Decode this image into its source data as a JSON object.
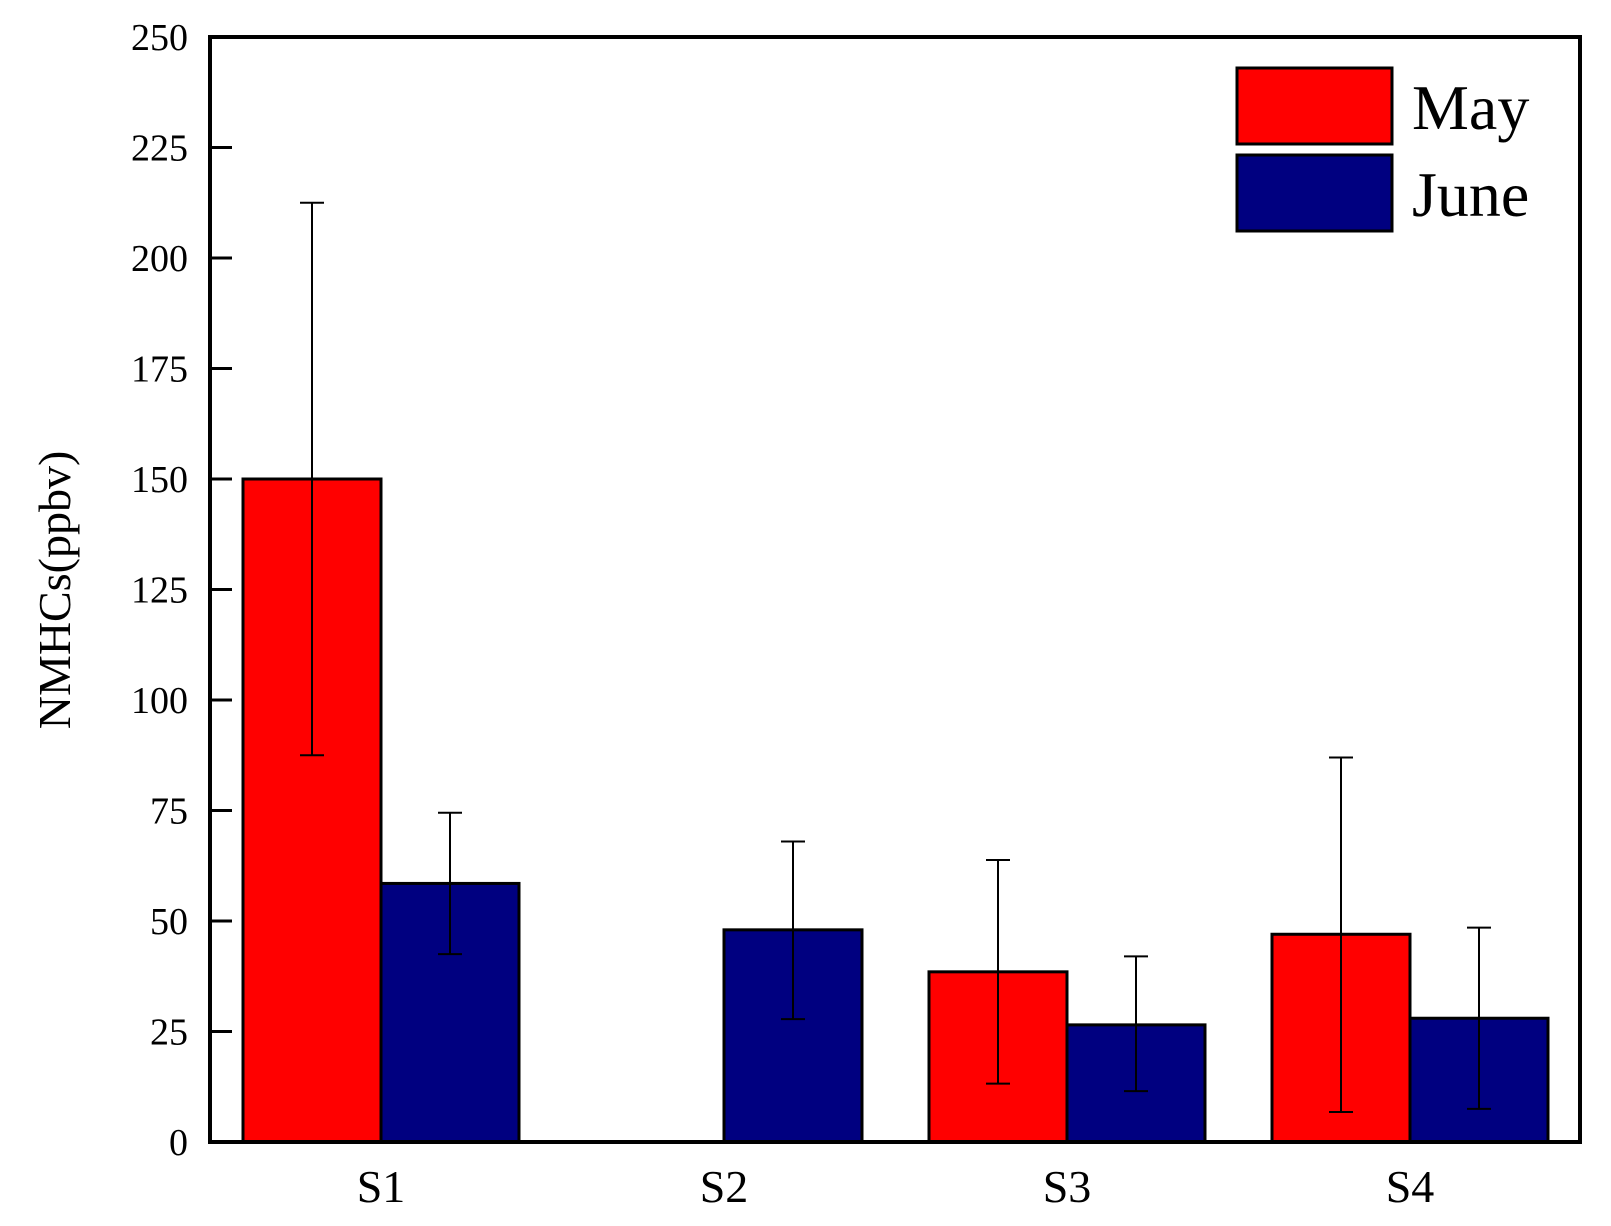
{
  "chart_data": {
    "type": "bar",
    "title": "",
    "xlabel": "",
    "ylabel": "NMHCs(ppbv)",
    "ylim": [
      0,
      250
    ],
    "yticks": [
      0,
      25,
      50,
      75,
      100,
      125,
      150,
      175,
      200,
      225,
      250
    ],
    "categories": [
      "S1",
      "S2",
      "S3",
      "S4"
    ],
    "series": [
      {
        "name": "May",
        "color": "#ff0000",
        "values": [
          150,
          null,
          38.5,
          47
        ],
        "error_low": [
          87.5,
          null,
          13.2,
          6.8
        ],
        "error_high": [
          212.5,
          null,
          63.8,
          87
        ]
      },
      {
        "name": "June",
        "color": "#000080",
        "values": [
          58.5,
          48,
          26.5,
          28
        ],
        "error_low": [
          42.5,
          27.8,
          11.5,
          7.5
        ],
        "error_high": [
          74.5,
          68,
          42,
          48.5
        ]
      }
    ],
    "legend_position": "top-right",
    "grid": false
  }
}
